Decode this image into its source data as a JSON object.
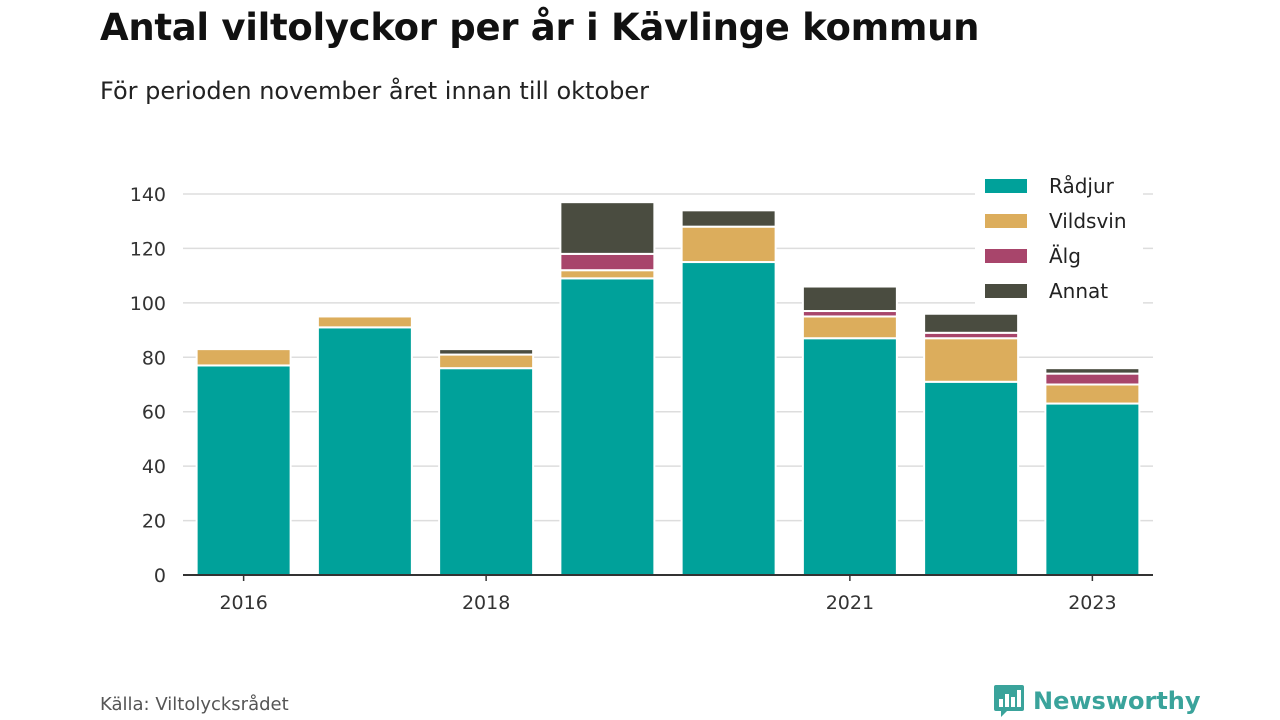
{
  "title": "Antal viltolyckor per år i Kävlinge kommun",
  "subtitle": "För perioden november året innan till oktober",
  "source": "Källa: Viltolycksrådet",
  "brand": {
    "name": "Newsworthy",
    "color": "#3aa39b",
    "icon": "newsworthy-logo-icon"
  },
  "chart_data": {
    "type": "bar",
    "stacked": true,
    "categories": [
      "2016",
      "2017",
      "2018",
      "2019",
      "2020",
      "2021",
      "2022",
      "2023"
    ],
    "x_tick_labels": [
      "2016",
      "",
      "2018",
      "",
      "",
      "2021",
      "",
      "2023"
    ],
    "y_ticks": [
      0,
      20,
      40,
      60,
      80,
      100,
      120,
      140
    ],
    "ylim": [
      0,
      140
    ],
    "grid": true,
    "legend_position": "top-right",
    "series": [
      {
        "name": "Rådjur",
        "color": "#00a19a",
        "values": [
          77,
          91,
          76,
          109,
          115,
          87,
          71,
          63
        ]
      },
      {
        "name": "Vildsvin",
        "color": "#dcad5c",
        "values": [
          6,
          4,
          5,
          3,
          13,
          8,
          16,
          7
        ]
      },
      {
        "name": "Älg",
        "color": "#a8456b",
        "values": [
          0,
          0,
          0,
          6,
          0,
          2,
          2,
          4
        ]
      },
      {
        "name": "Annat",
        "color": "#4a4c40",
        "values": [
          0,
          0,
          2,
          19,
          6,
          9,
          7,
          2
        ]
      }
    ]
  }
}
